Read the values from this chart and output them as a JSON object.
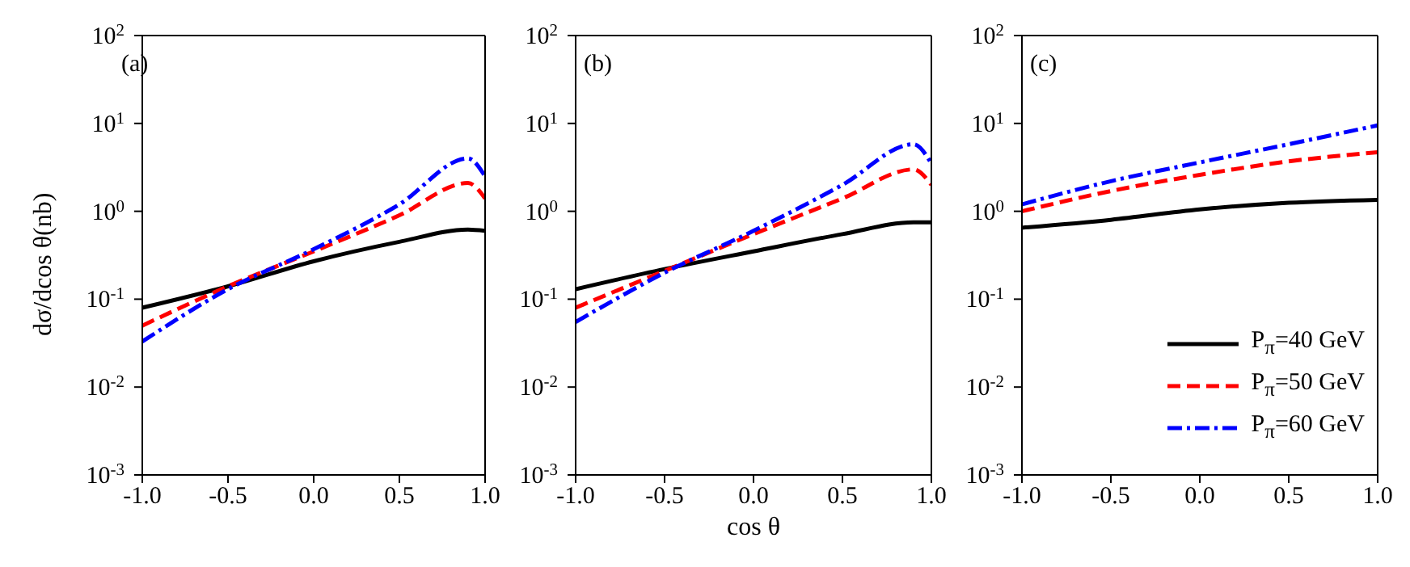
{
  "chart_data": [
    {
      "type": "line",
      "annotations": [
        "(a)"
      ],
      "ylabel": "dσ/dcos θ(nb)",
      "log": "y",
      "xlim": [
        -1,
        1
      ],
      "xticks": [
        {
          "value": -1,
          "label": "-1.0"
        },
        {
          "value": -0.5,
          "label": "-0.5"
        },
        {
          "value": 0,
          "label": "0.0"
        },
        {
          "value": 0.5,
          "label": "0.5"
        },
        {
          "value": 1,
          "label": "1.0"
        }
      ],
      "ylim": [
        0.001,
        100
      ],
      "yticks": [
        {
          "value": 0.001,
          "label": "10$^{-3}$"
        },
        {
          "value": 0.01,
          "label": "10$^{-2}$"
        },
        {
          "value": 0.1,
          "label": "10$^{-1}$"
        },
        {
          "value": 1,
          "label": "10$^{0}$"
        },
        {
          "value": 10,
          "label": "10$^{1}$"
        },
        {
          "value": 100,
          "label": "10$^{2}$"
        }
      ],
      "x": [
        -1,
        -0.5,
        0,
        0.5,
        0.9,
        1
      ],
      "series": [
        {
          "color": "#000000",
          "line_style": "solid",
          "values": [
            0.08,
            0.14,
            0.27,
            0.45,
            0.62,
            0.6
          ]
        },
        {
          "color": "#ff0000",
          "line_style": "dashed",
          "values": [
            0.05,
            0.14,
            0.35,
            0.9,
            2.1,
            1.4
          ]
        },
        {
          "color": "#0000ff",
          "line_style": "dashdot",
          "values": [
            0.033,
            0.13,
            0.37,
            1.2,
            4.0,
            2.5
          ]
        }
      ]
    },
    {
      "type": "line",
      "annotations": [
        "(b)"
      ],
      "xlabel": "cos θ",
      "log": "y",
      "xlim": [
        -1,
        1
      ],
      "xticks": [
        {
          "value": -1,
          "label": "-1.0"
        },
        {
          "value": -0.5,
          "label": "-0.5"
        },
        {
          "value": 0,
          "label": "0.0"
        },
        {
          "value": 0.5,
          "label": "0.5"
        },
        {
          "value": 1,
          "label": "1.0"
        }
      ],
      "ylim": [
        0.001,
        100
      ],
      "yticks": [
        {
          "value": 0.001,
          "label": "10$^{-3}$"
        },
        {
          "value": 0.01,
          "label": "10$^{-2}$"
        },
        {
          "value": 0.1,
          "label": "10$^{-1}$"
        },
        {
          "value": 1,
          "label": "10$^{0}$"
        },
        {
          "value": 10,
          "label": "10$^{1}$"
        },
        {
          "value": 100,
          "label": "10$^{2}$"
        }
      ],
      "x": [
        -1,
        -0.5,
        0,
        0.5,
        0.9,
        1
      ],
      "series": [
        {
          "color": "#000000",
          "line_style": "solid",
          "values": [
            0.13,
            0.22,
            0.35,
            0.55,
            0.75,
            0.75
          ]
        },
        {
          "color": "#ff0000",
          "line_style": "dashed",
          "values": [
            0.08,
            0.21,
            0.55,
            1.4,
            3.0,
            2.0
          ]
        },
        {
          "color": "#0000ff",
          "line_style": "dashdot",
          "values": [
            0.055,
            0.2,
            0.6,
            2.0,
            5.8,
            3.5
          ]
        }
      ]
    },
    {
      "type": "line",
      "annotations": [
        "(c)"
      ],
      "legend": "bottom right",
      "log": "y",
      "xlim": [
        -1,
        1
      ],
      "xticks": [
        {
          "value": -1,
          "label": "-1.0"
        },
        {
          "value": -0.5,
          "label": "-0.5"
        },
        {
          "value": 0,
          "label": "0.0"
        },
        {
          "value": 0.5,
          "label": "0.5"
        },
        {
          "value": 1,
          "label": "1.0"
        }
      ],
      "ylim": [
        0.001,
        100
      ],
      "yticks": [
        {
          "value": 0.001,
          "label": "10$^{-3}$"
        },
        {
          "value": 0.01,
          "label": "10$^{-2}$"
        },
        {
          "value": 0.1,
          "label": "10$^{-1}$"
        },
        {
          "value": 1,
          "label": "10$^{0}$"
        },
        {
          "value": 10,
          "label": "10$^{1}$"
        },
        {
          "value": 100,
          "label": "10$^{2}$"
        }
      ],
      "x": [
        -1,
        -0.5,
        0,
        0.5,
        1
      ],
      "series": [
        {
          "name": "P$_{π}$=40 GeV",
          "color": "#000000",
          "line_style": "solid",
          "values": [
            0.65,
            0.8,
            1.05,
            1.25,
            1.35
          ]
        },
        {
          "name": "P$_{π}$=50 GeV",
          "color": "#ff0000",
          "line_style": "dashed",
          "values": [
            1.0,
            1.7,
            2.6,
            3.7,
            4.7
          ]
        },
        {
          "name": "P$_{π}$=60 GeV",
          "color": "#0000ff",
          "line_style": "dashdot",
          "values": [
            1.2,
            2.2,
            3.6,
            5.8,
            9.5
          ]
        }
      ]
    }
  ]
}
